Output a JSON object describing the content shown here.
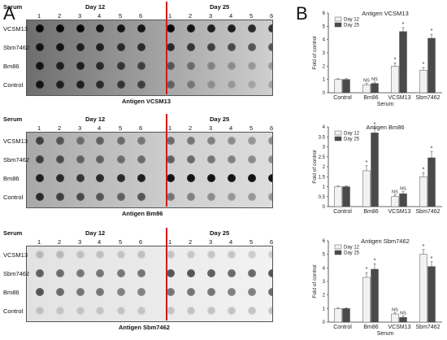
{
  "panel_a_label": "A",
  "panel_b_label": "B",
  "blots": [
    {
      "serum_label": "Serum",
      "day12_label": "Day 12",
      "day25_label": "Day 25",
      "lanes": [
        "1",
        "2",
        "3",
        "4",
        "5",
        "6",
        "1",
        "2",
        "3",
        "4",
        "5",
        "6"
      ],
      "rows": [
        "VCSM13",
        "Sbm7462",
        "Bm86",
        "Control"
      ],
      "antigen_label": "Antigen VCSM13"
    },
    {
      "serum_label": "Serum",
      "day12_label": "Day 12",
      "day25_label": "Day 25",
      "lanes": [
        "1",
        "2",
        "3",
        "4",
        "5",
        "6",
        "1",
        "2",
        "3",
        "4",
        "5",
        "6"
      ],
      "rows": [
        "VCSM13",
        "Sbm7462",
        "Bm86",
        "Control"
      ],
      "antigen_label": "Antigen Bm86"
    },
    {
      "serum_label": "Serum",
      "day12_label": "Day 12",
      "day25_label": "Day 25",
      "lanes": [
        "1",
        "2",
        "3",
        "4",
        "5",
        "6",
        "1",
        "2",
        "3",
        "4",
        "5",
        "6"
      ],
      "rows": [
        "VCSM13",
        "Sbm7462",
        "Bm86",
        "Control"
      ],
      "antigen_label": "Antigen Sbm7462"
    }
  ],
  "colors": {
    "day12": "#f2f2f2",
    "day25": "#4a4a4a",
    "divider": "#d11a1a"
  },
  "chart_data": [
    {
      "type": "bar",
      "title": "Antigen VCSM13",
      "xlabel": "Serum",
      "ylabel": "Fold of control",
      "categories": [
        "Control",
        "Bm86",
        "VCSM13",
        "Sbm7462"
      ],
      "ylim": [
        0,
        6
      ],
      "yticks": [
        "0",
        "1",
        "2",
        "3",
        "4",
        "5",
        "6"
      ],
      "series": [
        {
          "name": "Day 12",
          "values": [
            1.0,
            0.6,
            2.0,
            1.7
          ],
          "errors": [
            0.05,
            0.1,
            0.25,
            0.2
          ]
        },
        {
          "name": "Day 25",
          "values": [
            1.0,
            0.7,
            4.6,
            4.1
          ],
          "errors": [
            0.05,
            0.1,
            0.3,
            0.3
          ]
        }
      ],
      "annotations": [
        {
          "series": 0,
          "index": 1,
          "text": "NS"
        },
        {
          "series": 1,
          "index": 1,
          "text": "NS"
        },
        {
          "series": 0,
          "index": 2,
          "text": "*"
        },
        {
          "series": 1,
          "index": 2,
          "text": "*"
        },
        {
          "series": 0,
          "index": 3,
          "text": "*"
        },
        {
          "series": 1,
          "index": 3,
          "text": "*"
        }
      ]
    },
    {
      "type": "bar",
      "title": "Antigen Bm86",
      "xlabel": "",
      "ylabel": "Fold of control",
      "categories": [
        "Control",
        "Bm86",
        "VCSM13",
        "Sbm7462"
      ],
      "ylim": [
        0,
        4
      ],
      "yticks": [
        "0",
        "0.5",
        "1",
        "1.5",
        "2",
        "2.5",
        "3",
        "3.5",
        "4"
      ],
      "series": [
        {
          "name": "Day 12",
          "values": [
            1.0,
            1.8,
            0.5,
            1.5
          ],
          "errors": [
            0.03,
            0.25,
            0.1,
            0.2
          ]
        },
        {
          "name": "Day 25",
          "values": [
            1.0,
            3.7,
            0.65,
            2.45
          ],
          "errors": [
            0.03,
            0.25,
            0.1,
            0.3
          ]
        }
      ],
      "annotations": [
        {
          "series": 0,
          "index": 1,
          "text": "*"
        },
        {
          "series": 1,
          "index": 1,
          "text": "*"
        },
        {
          "series": 0,
          "index": 2,
          "text": "NS"
        },
        {
          "series": 1,
          "index": 2,
          "text": "NS"
        },
        {
          "series": 0,
          "index": 3,
          "text": "*"
        },
        {
          "series": 1,
          "index": 3,
          "text": "*"
        }
      ]
    },
    {
      "type": "bar",
      "title": "Antigen Sbm7462",
      "xlabel": "Serum",
      "ylabel": "Fold of control",
      "categories": [
        "Control",
        "Bm86",
        "VCSM13",
        "Sbm7462"
      ],
      "ylim": [
        0,
        6
      ],
      "yticks": [
        "0",
        "1",
        "2",
        "3",
        "4",
        "5",
        "6"
      ],
      "series": [
        {
          "name": "Day 12",
          "values": [
            1.0,
            3.3,
            0.6,
            5.0
          ],
          "errors": [
            0.05,
            0.35,
            0.1,
            0.35
          ]
        },
        {
          "name": "Day 25",
          "values": [
            1.0,
            3.9,
            0.35,
            4.1
          ],
          "errors": [
            0.05,
            0.4,
            0.1,
            0.35
          ]
        }
      ],
      "annotations": [
        {
          "series": 0,
          "index": 1,
          "text": "*"
        },
        {
          "series": 1,
          "index": 1,
          "text": "*"
        },
        {
          "series": 0,
          "index": 2,
          "text": "NS"
        },
        {
          "series": 1,
          "index": 2,
          "text": "NS"
        },
        {
          "series": 0,
          "index": 3,
          "text": "*"
        },
        {
          "series": 1,
          "index": 3,
          "text": "*"
        }
      ]
    }
  ]
}
